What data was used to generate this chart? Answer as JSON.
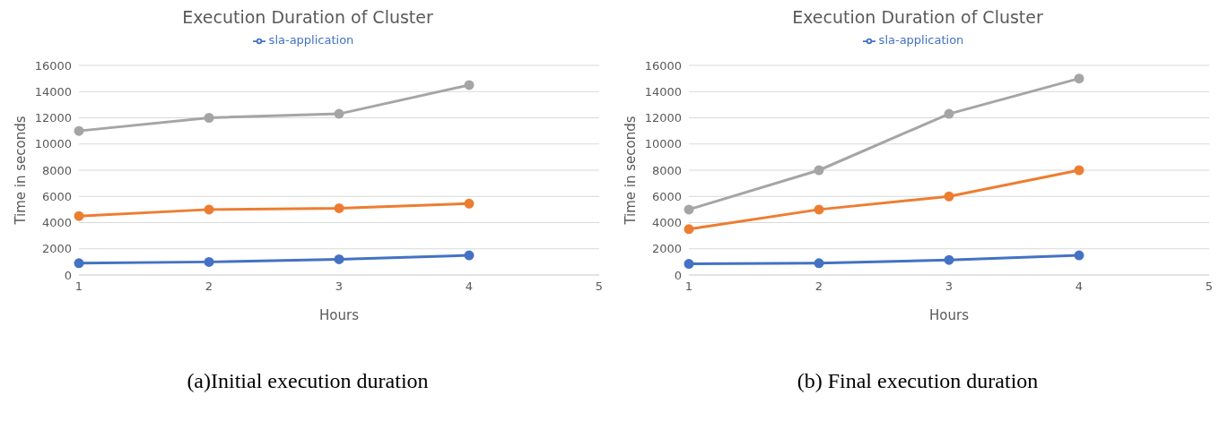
{
  "chart_data": [
    {
      "type": "line",
      "title": "Execution Duration of Cluster",
      "xlabel": "Hours",
      "ylabel": "Time in seconds",
      "categories": [
        "1",
        "2",
        "3",
        "4",
        "5"
      ],
      "series": [
        {
          "name": "sla-application",
          "color": "#4472c4",
          "values": [
            900,
            1000,
            1200,
            1500,
            null
          ]
        },
        {
          "color": "#ed7d31",
          "values": [
            4500,
            5000,
            5100,
            5450,
            null
          ]
        },
        {
          "color": "#a5a5a5",
          "values": [
            11000,
            12000,
            12300,
            14500,
            null
          ]
        }
      ],
      "ylim": [
        0,
        16000
      ],
      "yticks": [
        0,
        2000,
        4000,
        6000,
        8000,
        10000,
        12000,
        14000,
        16000
      ],
      "grid": "y",
      "legend": "top",
      "marker": "circle",
      "line_style": "solid",
      "annotations": [
        "(a)Initial execution duration"
      ]
    },
    {
      "type": "line",
      "title": "Execution Duration of Cluster",
      "xlabel": "Hours",
      "ylabel": "Time in seconds",
      "categories": [
        "1",
        "2",
        "3",
        "4",
        "5"
      ],
      "series": [
        {
          "name": "sla-application",
          "color": "#4472c4",
          "values": [
            850,
            900,
            1150,
            1500,
            null
          ]
        },
        {
          "color": "#ed7d31",
          "values": [
            3500,
            5000,
            6000,
            8000,
            null
          ]
        },
        {
          "color": "#a5a5a5",
          "values": [
            5000,
            8000,
            12300,
            15000,
            null
          ]
        }
      ],
      "ylim": [
        0,
        16000
      ],
      "yticks": [
        0,
        2000,
        4000,
        6000,
        8000,
        10000,
        12000,
        14000,
        16000
      ],
      "grid": "y",
      "legend": "top",
      "marker": "circle",
      "line_style": "solid",
      "annotations": [
        "(b) Final execution duration"
      ]
    }
  ]
}
